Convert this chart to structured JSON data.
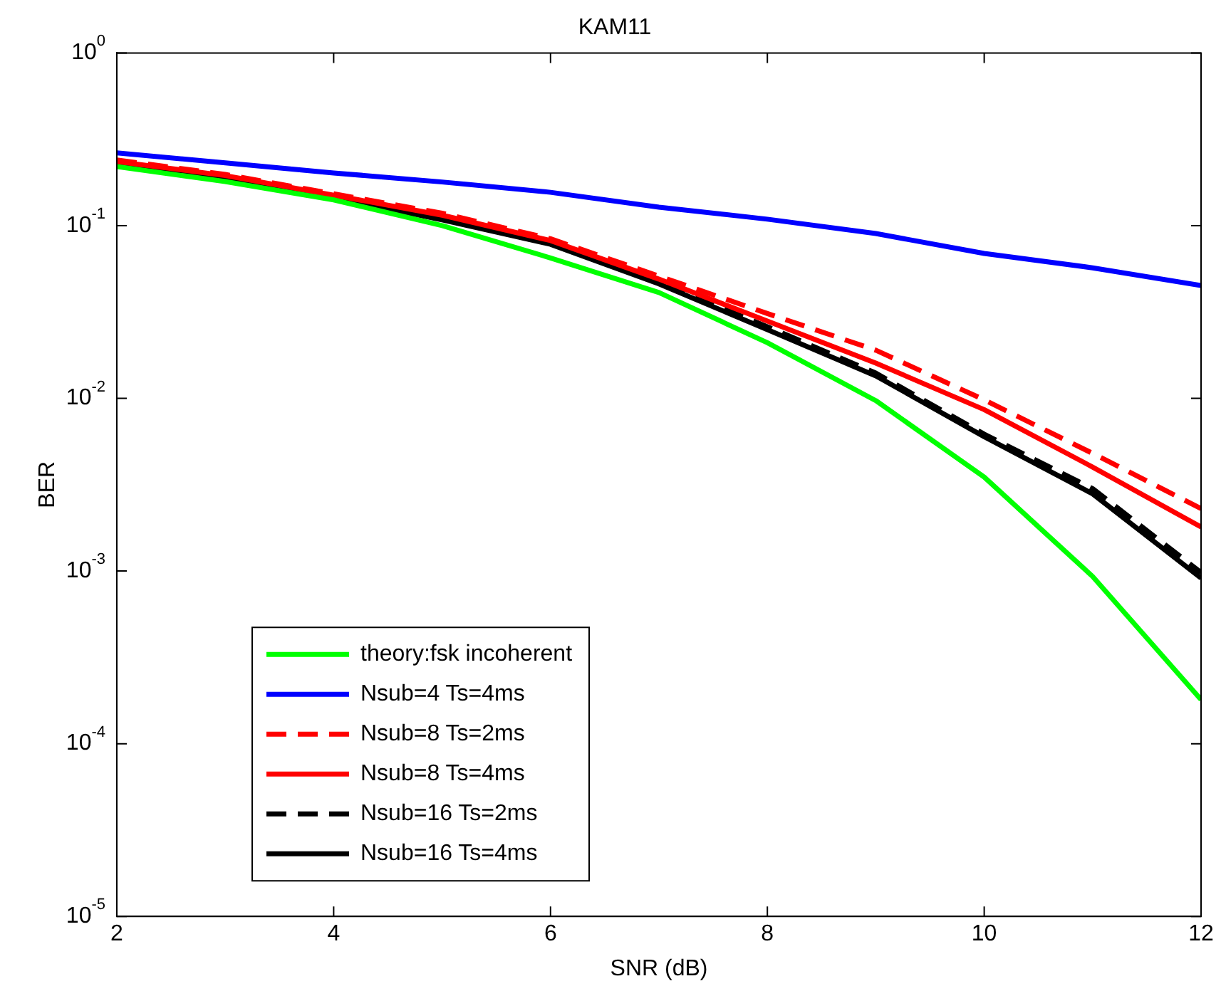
{
  "chart_data": {
    "type": "line",
    "title": "KAM11",
    "xlabel": "SNR (dB)",
    "ylabel": "BER",
    "x": [
      2,
      3,
      4,
      5,
      6,
      7,
      8,
      9,
      10,
      11,
      12
    ],
    "series": [
      {
        "name": "theory:fsk incoherent",
        "color": "#00ff00",
        "line_style": "solid",
        "values": [
          0.22,
          0.18,
          0.141,
          0.1,
          0.065,
          0.041,
          0.021,
          0.0097,
          0.0035,
          0.00093,
          0.00018
        ]
      },
      {
        "name": "Nsub=4 Ts=4ms",
        "color": "#0000ff",
        "line_style": "solid",
        "values": [
          0.264,
          0.231,
          0.202,
          0.179,
          0.156,
          0.128,
          0.109,
          0.09,
          0.069,
          0.057,
          0.045
        ]
      },
      {
        "name": "Nsub=8 Ts=2ms",
        "color": "#ff0000",
        "line_style": "dashed",
        "values": [
          0.24,
          0.198,
          0.153,
          0.118,
          0.084,
          0.051,
          0.031,
          0.019,
          0.0098,
          0.0048,
          0.0023
        ]
      },
      {
        "name": "Nsub=8 Ts=4ms",
        "color": "#ff0000",
        "line_style": "solid",
        "values": [
          0.235,
          0.195,
          0.15,
          0.115,
          0.082,
          0.049,
          0.028,
          0.016,
          0.0086,
          0.004,
          0.0018
        ]
      },
      {
        "name": "Nsub=16 Ts=2ms",
        "color": "#000000",
        "line_style": "dashed",
        "values": [
          0.226,
          0.186,
          0.146,
          0.109,
          0.079,
          0.047,
          0.026,
          0.014,
          0.0062,
          0.003,
          0.00098
        ]
      },
      {
        "name": "Nsub=16 Ts=4ms",
        "color": "#000000",
        "line_style": "solid",
        "values": [
          0.225,
          0.185,
          0.145,
          0.108,
          0.078,
          0.046,
          0.025,
          0.0135,
          0.006,
          0.0028,
          0.00091
        ]
      }
    ],
    "log": "y",
    "xlim": [
      2,
      12
    ],
    "xticks": [
      2,
      4,
      6,
      8,
      10,
      12
    ],
    "ylim": [
      1e-05,
      1
    ],
    "yticks": [
      {
        "value": 1e-05,
        "label": "10$^{-5}$"
      },
      {
        "value": 0.0001,
        "label": "10$^{-4}$"
      },
      {
        "value": 0.001,
        "label": "10$^{-3}$"
      },
      {
        "value": 0.01,
        "label": "10$^{-2}$"
      },
      {
        "value": 0.1,
        "label": "10$^{-1}$"
      },
      {
        "value": 1,
        "label": "10$^{0}$"
      }
    ],
    "grid": false,
    "legend": "bottom left",
    "marker": "none"
  }
}
